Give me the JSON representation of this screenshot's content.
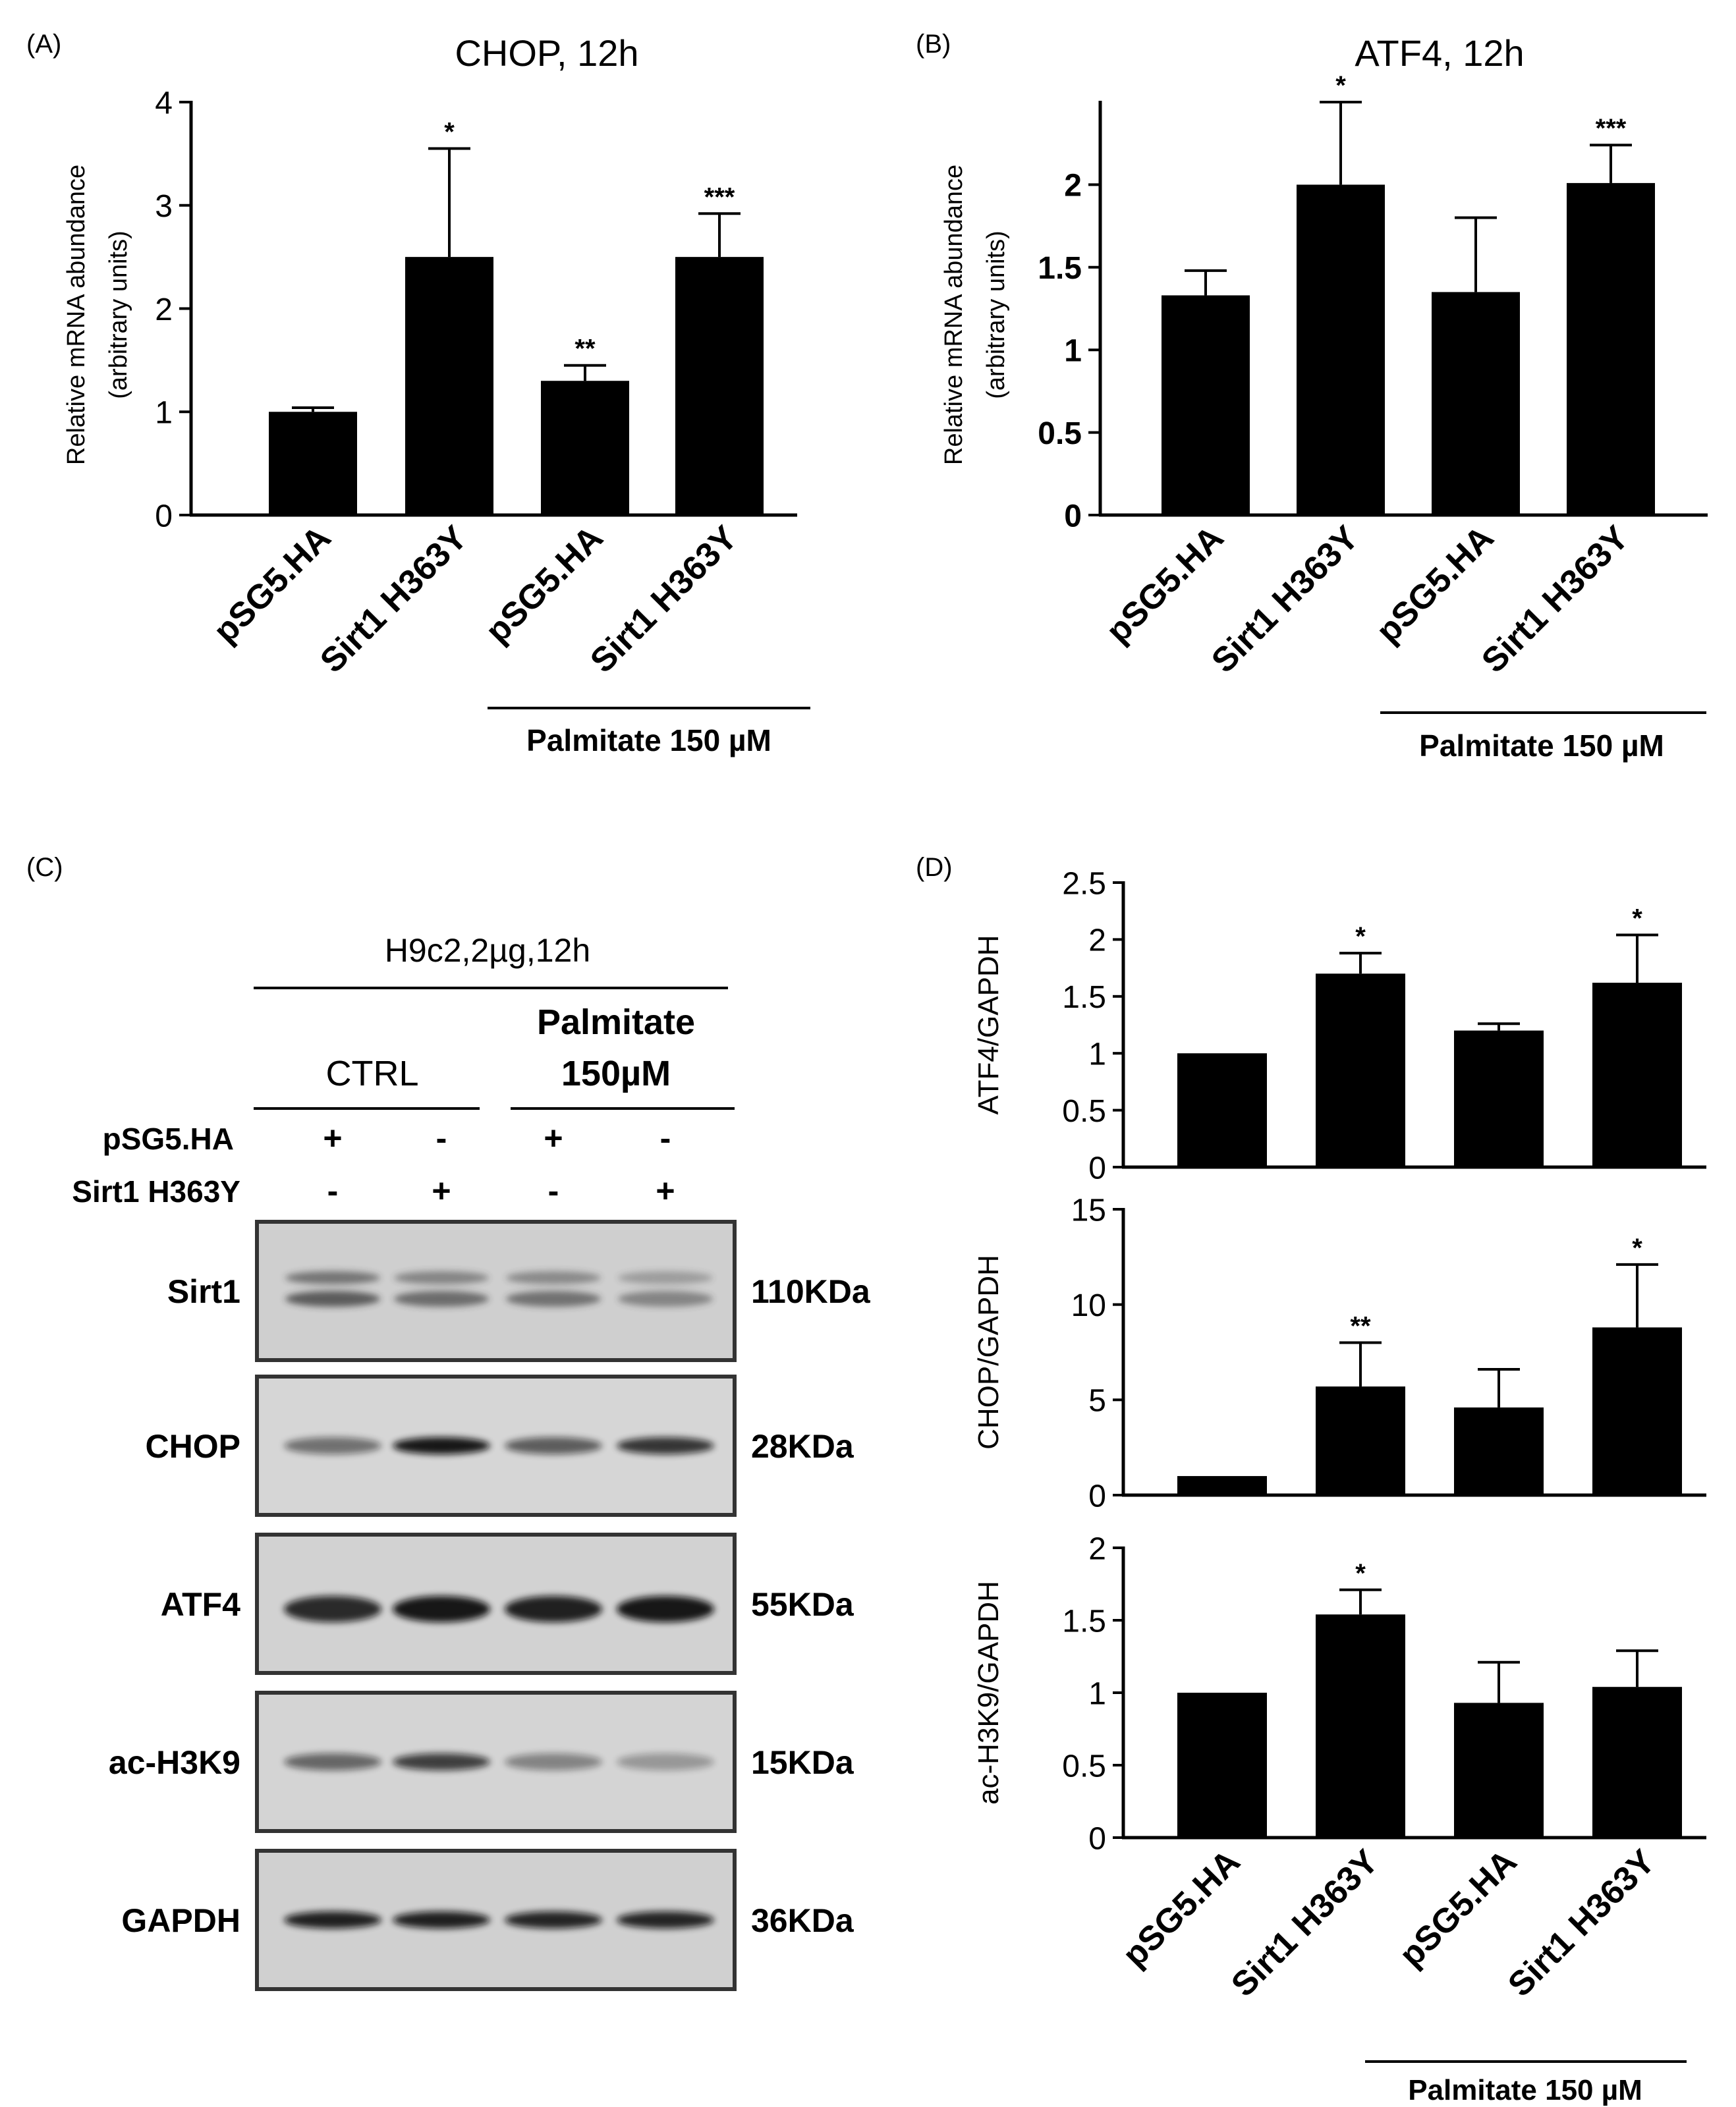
{
  "chart_data": [
    {
      "panel": "(A)",
      "type": "bar",
      "title": "CHOP, 12h",
      "ylabel": [
        "Relative mRNA abundance",
        "(arbitrary units)"
      ],
      "categories": [
        "pSG5.HA",
        "Sirt1 H363Y",
        "pSG5.HA",
        "Sirt1 H363Y"
      ],
      "values": [
        1.0,
        2.5,
        1.3,
        2.5
      ],
      "errors": [
        0.04,
        1.05,
        0.15,
        0.42
      ],
      "significance": [
        "",
        "*",
        "**",
        "***"
      ],
      "ylim": [
        0,
        4
      ],
      "yticks": [
        "0",
        "1",
        "2",
        "3",
        "4"
      ],
      "bracket_label": "Palmitate 150 µM"
    },
    {
      "panel": "(B)",
      "type": "bar",
      "title": "ATF4, 12h",
      "ylabel": [
        "Relative mRNA abundance",
        "(arbitrary units)"
      ],
      "categories": [
        "pSG5.HA",
        "Sirt1 H363Y",
        "pSG5.HA",
        "Sirt1 H363Y"
      ],
      "values": [
        1.33,
        2.0,
        1.35,
        2.01
      ],
      "errors": [
        0.15,
        0.5,
        0.45,
        0.23
      ],
      "significance": [
        "",
        "*",
        "",
        "***"
      ],
      "ylim": [
        0,
        2.5
      ],
      "yticks": [
        {
          "value": 0,
          "label": "0"
        },
        {
          "value": 0.5,
          "label": "0.5"
        },
        {
          "value": 1,
          "label": "1"
        },
        {
          "value": 1.5,
          "label": "1.5"
        },
        {
          "value": 2,
          "label": "2"
        }
      ],
      "bracket_label": "Palmitate 150 µM"
    },
    {
      "panel": "(D)",
      "type": "bar",
      "categories": [
        "pSG5.HA",
        "Sirt1 H363Y",
        "pSG5.HA",
        "Sirt1 H363Y"
      ],
      "bracket_label": "Palmitate 150 µM",
      "subplots": [
        {
          "ylabel": "ATF4/GAPDH",
          "values": [
            1.0,
            1.7,
            1.2,
            1.62
          ],
          "errors": [
            0.0,
            0.18,
            0.06,
            0.42
          ],
          "significance": [
            "",
            "*",
            "",
            "*"
          ],
          "ylim": [
            0,
            2.5
          ],
          "yticks": [
            "0",
            "0.5",
            "1",
            "1.5",
            "2",
            "2.5"
          ]
        },
        {
          "ylabel": "CHOP/GAPDH",
          "values": [
            1.0,
            5.7,
            4.6,
            8.8
          ],
          "errors": [
            0.0,
            2.3,
            2.0,
            3.3
          ],
          "significance": [
            "",
            "**",
            "",
            "*"
          ],
          "ylim": [
            0,
            15
          ],
          "yticks": [
            "0",
            "5",
            "10",
            "15"
          ]
        },
        {
          "ylabel": "ac-H3K9/GAPDH",
          "values": [
            1.0,
            1.54,
            0.93,
            1.04
          ],
          "errors": [
            0.0,
            0.17,
            0.28,
            0.25
          ],
          "significance": [
            "",
            "*",
            "",
            ""
          ],
          "ylim": [
            0,
            2
          ],
          "yticks": [
            "0",
            "0.5",
            "1",
            "1.5",
            "2"
          ]
        }
      ]
    }
  ],
  "blot": {
    "panel": "(C)",
    "title": "H9c2,2µg,12h",
    "group_ctrl": "CTRL",
    "group_palm_line1": "Palmitate",
    "group_palm_line2": "150µM",
    "row_labels": [
      "pSG5.HA",
      "Sirt1 H363Y"
    ],
    "row_signs": [
      [
        "+",
        "-",
        "+",
        "-"
      ],
      [
        "-",
        "+",
        "-",
        "+"
      ]
    ],
    "bands": [
      {
        "label": "Sirt1",
        "kda": "110KDa"
      },
      {
        "label": "CHOP",
        "kda": "28KDa"
      },
      {
        "label": "ATF4",
        "kda": "55KDa"
      },
      {
        "label": "ac-H3K9",
        "kda": "15KDa"
      },
      {
        "label": "GAPDH",
        "kda": "36KDa"
      }
    ]
  }
}
